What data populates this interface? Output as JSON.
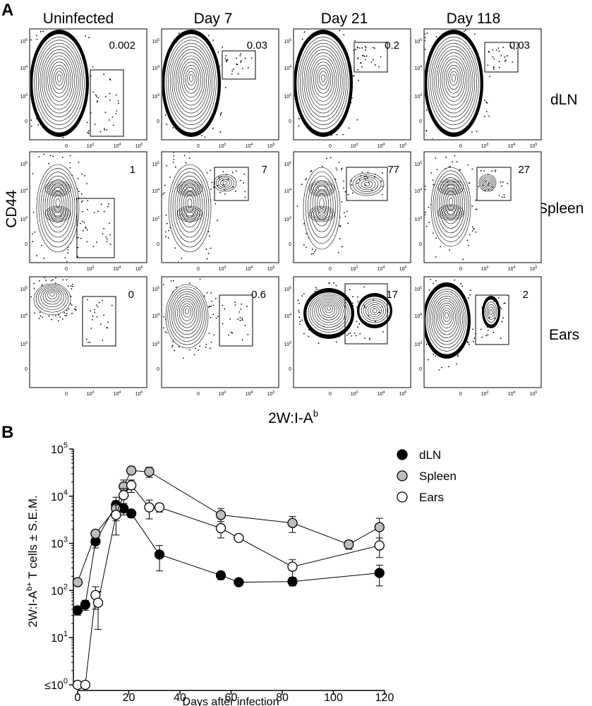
{
  "panel_labels": {
    "a": "A",
    "b": "B"
  },
  "flow": {
    "columns": [
      "Uninfected",
      "Day 7",
      "Day 21",
      "Day 118"
    ],
    "rows": [
      "dLN",
      "Spleen",
      "Ears"
    ],
    "y_axis_label": "CD44",
    "x_axis_label": "2W:I-A",
    "x_axis_label_sup": "b",
    "tick_labels": [
      "0",
      "10",
      "10",
      "10"
    ],
    "tick_label_exponents": [
      "",
      "3",
      "4",
      "5"
    ],
    "gate_values": [
      [
        "0.002",
        "0.03",
        "0.2",
        "0.03"
      ],
      [
        "1",
        "7",
        "77",
        "27"
      ],
      [
        "0",
        "0.6",
        "17",
        "2"
      ]
    ]
  },
  "chart_data": {
    "type": "line",
    "xlabel": "Days after infection",
    "ylabel": "2W:I-Ab+ T cells ± S.E.M.",
    "ylabel_parts": [
      "2W:I-A",
      "b+",
      " T cells ± S.E.M."
    ],
    "xlim": [
      0,
      120
    ],
    "xticks": [
      0,
      20,
      40,
      60,
      80,
      100,
      120
    ],
    "y_scale": "log",
    "ylim": [
      1,
      100000
    ],
    "ytick_prefix_first": "≤",
    "ytick_base": "10",
    "ytick_exponents": [
      "0",
      "1",
      "2",
      "3",
      "4",
      "5"
    ],
    "legend_position": "top-right",
    "series": [
      {
        "name": "dLN",
        "fill": "#000000",
        "points": [
          {
            "x": 0,
            "y": 38,
            "err": 8
          },
          {
            "x": 3,
            "y": 50,
            "err": 12
          },
          {
            "x": 7,
            "y": 1100,
            "err": 300
          },
          {
            "x": 15,
            "y": 6500,
            "err": 3000
          },
          {
            "x": 18,
            "y": 5500,
            "err": 1500
          },
          {
            "x": 21,
            "y": 4300,
            "err": 800
          },
          {
            "x": 32,
            "y": 580,
            "err": 320
          },
          {
            "x": 56,
            "y": 210,
            "err": 40
          },
          {
            "x": 63,
            "y": 150,
            "err": 15
          },
          {
            "x": 84,
            "y": 155,
            "err": 30
          },
          {
            "x": 118,
            "y": 235,
            "err": 110
          }
        ]
      },
      {
        "name": "Spleen",
        "fill": "#bdbdbd",
        "points": [
          {
            "x": 0,
            "y": 150,
            "err": 20
          },
          {
            "x": 7,
            "y": 1600,
            "err": 300
          },
          {
            "x": 15,
            "y": 5500,
            "err": 2500
          },
          {
            "x": 18,
            "y": 16000,
            "err": 6000
          },
          {
            "x": 21,
            "y": 35000,
            "err": 6000
          },
          {
            "x": 28,
            "y": 33000,
            "err": 8000
          },
          {
            "x": 56,
            "y": 4000,
            "err": 1500
          },
          {
            "x": 84,
            "y": 2700,
            "err": 1000
          },
          {
            "x": 106,
            "y": 950,
            "err": 200
          },
          {
            "x": 118,
            "y": 2200,
            "err": 1200
          }
        ]
      },
      {
        "name": "Ears",
        "fill": "#ffffff",
        "points": [
          {
            "x": 0,
            "y": 1,
            "err": 0
          },
          {
            "x": 3,
            "y": 1,
            "err": 0
          },
          {
            "x": 7,
            "y": 80,
            "err": 40
          },
          {
            "x": 8,
            "y": 55,
            "err": 40
          },
          {
            "x": 15,
            "y": 4000,
            "err": 2500
          },
          {
            "x": 18,
            "y": 10500,
            "err": 4000
          },
          {
            "x": 21,
            "y": 17000,
            "err": 5000
          },
          {
            "x": 28,
            "y": 5800,
            "err": 2500
          },
          {
            "x": 32,
            "y": 5800,
            "err": 1200
          },
          {
            "x": 56,
            "y": 2100,
            "err": 800
          },
          {
            "x": 63,
            "y": 1300,
            "err": 200
          },
          {
            "x": 84,
            "y": 320,
            "err": 130
          },
          {
            "x": 118,
            "y": 900,
            "err": 400
          }
        ]
      }
    ]
  }
}
